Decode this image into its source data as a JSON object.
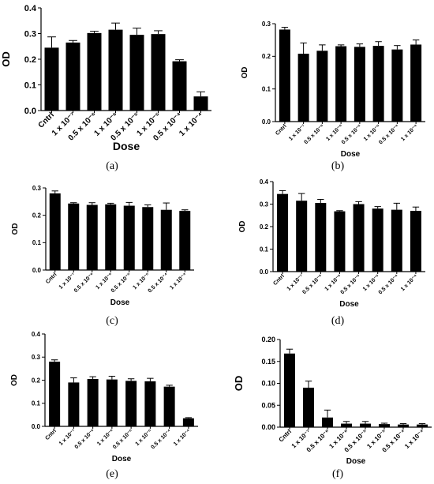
{
  "figure": {
    "captions": [
      "(a)",
      "(b)",
      "(c)",
      "(d)",
      "(e)",
      "(f)"
    ]
  },
  "chart_data": [
    {
      "id": "a",
      "type": "bar",
      "ylabel": "OD",
      "xlabel": "Dose",
      "ylim": [
        0,
        0.4
      ],
      "yticks": [
        "0.0",
        "0.1",
        "0.2",
        "0.3",
        "0.4"
      ],
      "categories": [
        "Cntrl",
        "1 x 10⁻⁷",
        "0.5 x 10⁻⁶",
        "1 x 10⁻⁶",
        "0.5 x 10⁻⁵",
        "1 x 10⁻⁵",
        "0.5 x 10⁻⁴",
        "1 x 10⁻⁴"
      ],
      "values": [
        0.245,
        0.265,
        0.302,
        0.315,
        0.295,
        0.298,
        0.192,
        0.055
      ],
      "errors": [
        0.042,
        0.008,
        0.007,
        0.026,
        0.026,
        0.013,
        0.006,
        0.018
      ]
    },
    {
      "id": "b",
      "type": "bar",
      "ylabel": "OD",
      "xlabel": "Dose",
      "ylim": [
        0,
        0.3
      ],
      "yticks": [
        "0.0",
        "0.1",
        "0.2",
        "0.3"
      ],
      "categories": [
        "Cntrl",
        "1 x 10⁻⁷",
        "0.5 x 10⁻⁶",
        "1 x 10⁻⁶",
        "0.5 x 10⁻⁵",
        "1 x 10⁻⁵",
        "0.5 x 10⁻⁴",
        "1 x 10⁻⁴"
      ],
      "values": [
        0.282,
        0.208,
        0.217,
        0.231,
        0.229,
        0.232,
        0.221,
        0.236
      ],
      "errors": [
        0.007,
        0.033,
        0.018,
        0.004,
        0.009,
        0.013,
        0.012,
        0.014
      ]
    },
    {
      "id": "c",
      "type": "bar",
      "ylabel": "OD",
      "xlabel": "Dose",
      "ylim": [
        0,
        0.3
      ],
      "yticks": [
        "0.0",
        "0.1",
        "0.2",
        "0.3"
      ],
      "categories": [
        "Cntrl",
        "1 x 10⁻⁷",
        "0.5 x 10⁻⁶",
        "1 x 10⁻⁶",
        "0.5 x 10⁻⁵",
        "1 x 10⁻⁵",
        "0.5 x 10⁻⁴",
        "1 x 10⁻⁴"
      ],
      "values": [
        0.28,
        0.243,
        0.238,
        0.24,
        0.235,
        0.23,
        0.22,
        0.216
      ],
      "errors": [
        0.009,
        0.003,
        0.008,
        0.004,
        0.012,
        0.008,
        0.025,
        0.004
      ]
    },
    {
      "id": "d",
      "type": "bar",
      "ylabel": "OD",
      "xlabel": "Dose",
      "ylim": [
        0,
        0.4
      ],
      "yticks": [
        "0.0",
        "0.1",
        "0.2",
        "0.3",
        "0.4"
      ],
      "categories": [
        "Cntrl",
        "1 x 10⁻⁷",
        "0.5 x 10⁻⁶",
        "1 x 10⁻⁶",
        "0.5 x 10⁻⁵",
        "1 x 10⁻⁵",
        "0.5 x 10⁻⁴",
        "1 x 10⁻⁴"
      ],
      "values": [
        0.345,
        0.315,
        0.305,
        0.268,
        0.3,
        0.28,
        0.275,
        0.27
      ],
      "errors": [
        0.015,
        0.032,
        0.016,
        0.003,
        0.011,
        0.009,
        0.029,
        0.017
      ]
    },
    {
      "id": "e",
      "type": "bar",
      "ylabel": "OD",
      "xlabel": "Dose",
      "ylim": [
        0,
        0.4
      ],
      "yticks": [
        "0.0",
        "0.1",
        "0.2",
        "0.3",
        "0.4"
      ],
      "categories": [
        "Cntrl",
        "1 x 10⁻⁷",
        "0.5 x 10⁻⁶",
        "1 x 10⁻⁶",
        "0.5 x 10⁻⁵",
        "1 x 10⁻⁵",
        "0.5 x 10⁻⁴",
        "1 x 10⁻⁴"
      ],
      "values": [
        0.28,
        0.19,
        0.205,
        0.203,
        0.197,
        0.195,
        0.172,
        0.035
      ],
      "errors": [
        0.008,
        0.02,
        0.01,
        0.014,
        0.009,
        0.013,
        0.006,
        0.003
      ]
    },
    {
      "id": "f",
      "type": "bar",
      "ylabel": "OD",
      "xlabel": "Dose",
      "ylim": [
        0,
        0.2
      ],
      "yticks": [
        "0.00",
        "0.05",
        "0.10",
        "0.15",
        "0.20"
      ],
      "categories": [
        "Cntrl",
        "1 x 10⁻⁷",
        "0.5 x 10⁻⁶",
        "1 x 10⁻⁶",
        "0.5 x 10⁻⁵",
        "1 x 10⁻⁵",
        "0.5 x 10⁻⁴",
        "1 x 10⁻⁴"
      ],
      "values": [
        0.168,
        0.09,
        0.022,
        0.008,
        0.008,
        0.007,
        0.006,
        0.006
      ],
      "errors": [
        0.01,
        0.015,
        0.017,
        0.005,
        0.005,
        0.002,
        0.002,
        0.002
      ]
    }
  ]
}
